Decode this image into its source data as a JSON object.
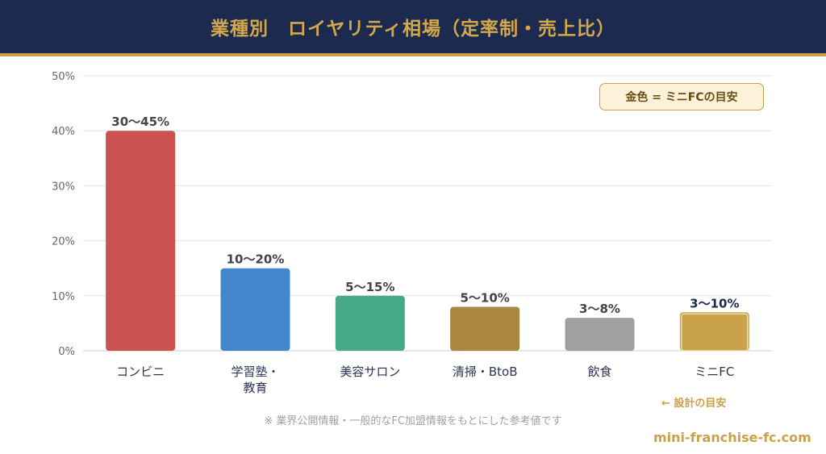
{
  "header": {
    "title": "業種別　ロイヤリティ相場（定率制・売上比）"
  },
  "legend": {
    "text": "金色 = ミニFCの目安"
  },
  "footnote": "※ 業界公開情報・一般的なFC加盟情報をもとにした参考値です",
  "design_note": "← 設計の目安",
  "site": "mini-franchise-fc.com",
  "colors": {
    "header_bg": "#1b2a4e",
    "accent_gold": "#c9a24a"
  },
  "chart_data": {
    "type": "bar",
    "title": "業種別　ロイヤリティ相場（定率制・売上比）",
    "categories": [
      "コンビニ",
      "学習塾・\n教育",
      "美容サロン",
      "清掃・BtoB",
      "飲食",
      "ミニFC"
    ],
    "values": [
      40,
      15,
      10,
      8,
      6,
      7
    ],
    "data_labels": [
      "30〜45%",
      "10〜20%",
      "5〜15%",
      "5〜10%",
      "3〜8%",
      "3〜10%"
    ],
    "bar_colors": [
      "#cc5250",
      "#4287cc",
      "#46aa86",
      "#a98741",
      "#a0a0a0",
      "#c9a24a"
    ],
    "ylim": [
      0,
      50
    ],
    "yticks": [
      "0%",
      "10%",
      "20%",
      "30%",
      "40%",
      "50%"
    ],
    "grid": true,
    "legend_position": "top-right"
  }
}
